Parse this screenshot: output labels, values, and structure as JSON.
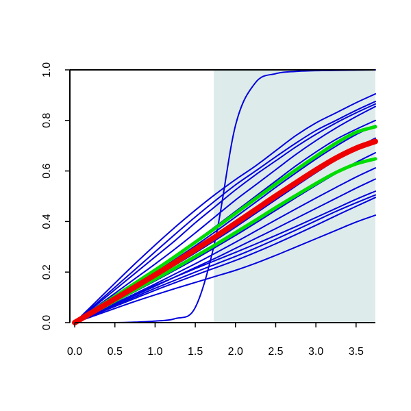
{
  "chart_data": {
    "type": "line",
    "title": "",
    "xlabel": "",
    "ylabel": "",
    "xlim": [
      -0.06,
      3.74
    ],
    "ylim": [
      0.0,
      1.0
    ],
    "x_ticks": [
      {
        "value": 0.0,
        "label": "0.0"
      },
      {
        "value": 0.5,
        "label": "0.5"
      },
      {
        "value": 1.0,
        "label": "1.0"
      },
      {
        "value": 1.5,
        "label": "1.5"
      },
      {
        "value": 2.0,
        "label": "2.0"
      },
      {
        "value": 2.5,
        "label": "2.5"
      },
      {
        "value": 3.0,
        "label": "3.0"
      },
      {
        "value": 3.5,
        "label": "3.5"
      }
    ],
    "y_ticks": [
      {
        "value": 0.0,
        "label": "0.0"
      },
      {
        "value": 0.2,
        "label": "0.2"
      },
      {
        "value": 0.4,
        "label": "0.4"
      },
      {
        "value": 0.6,
        "label": "0.6"
      },
      {
        "value": 0.8,
        "label": "0.8"
      },
      {
        "value": 1.0,
        "label": "1.0"
      }
    ],
    "grid": false,
    "legend": "none",
    "shaded_region": {
      "x_start": 1.73,
      "x_end": 3.74,
      "color": "#deebeb"
    },
    "x": [
      0.0,
      0.25,
      0.5,
      0.75,
      1.0,
      1.25,
      1.5,
      1.75,
      2.0,
      2.25,
      2.5,
      2.75,
      3.0,
      3.25,
      3.5,
      3.74
    ],
    "series": [
      {
        "color": "#0000dd",
        "width": 2,
        "values": [
          0.0,
          0.0,
          0.0,
          0.002,
          0.006,
          0.016,
          0.06,
          0.33,
          0.78,
          0.95,
          0.985,
          0.994,
          0.997,
          0.998,
          0.999,
          1.0
        ]
      },
      {
        "color": "#0000dd",
        "width": 2,
        "values": [
          0.0,
          0.078,
          0.156,
          0.233,
          0.307,
          0.378,
          0.445,
          0.508,
          0.566,
          0.62,
          0.68,
          0.74,
          0.79,
          0.83,
          0.87,
          0.905
        ]
      },
      {
        "color": "#0000dd",
        "width": 2,
        "values": [
          0.0,
          0.07,
          0.14,
          0.21,
          0.28,
          0.35,
          0.418,
          0.483,
          0.545,
          0.6,
          0.656,
          0.71,
          0.76,
          0.8,
          0.84,
          0.875
        ]
      },
      {
        "color": "#0000dd",
        "width": 2,
        "values": [
          0.0,
          0.065,
          0.13,
          0.195,
          0.26,
          0.325,
          0.395,
          0.46,
          0.525,
          0.585,
          0.64,
          0.695,
          0.745,
          0.79,
          0.83,
          0.865
        ]
      },
      {
        "color": "#0000dd",
        "width": 2,
        "values": [
          0.0,
          0.058,
          0.116,
          0.174,
          0.232,
          0.292,
          0.355,
          0.42,
          0.485,
          0.545,
          0.605,
          0.665,
          0.72,
          0.77,
          0.815,
          0.855
        ]
      },
      {
        "color": "#0000dd",
        "width": 2,
        "values": [
          0.0,
          0.052,
          0.104,
          0.156,
          0.21,
          0.265,
          0.322,
          0.38,
          0.44,
          0.5,
          0.56,
          0.62,
          0.675,
          0.725,
          0.765,
          0.8
        ]
      },
      {
        "color": "#0000dd",
        "width": 2,
        "values": [
          0.0,
          0.049,
          0.098,
          0.147,
          0.198,
          0.25,
          0.304,
          0.36,
          0.418,
          0.476,
          0.535,
          0.592,
          0.647,
          0.698,
          0.744,
          0.78
        ]
      },
      {
        "color": "#0000dd",
        "width": 2,
        "values": [
          0.0,
          0.045,
          0.09,
          0.135,
          0.181,
          0.228,
          0.276,
          0.326,
          0.378,
          0.432,
          0.486,
          0.54,
          0.593,
          0.643,
          0.69,
          0.73
        ]
      },
      {
        "color": "#0000dd",
        "width": 2,
        "values": [
          0.0,
          0.041,
          0.082,
          0.123,
          0.165,
          0.208,
          0.252,
          0.298,
          0.345,
          0.394,
          0.444,
          0.494,
          0.543,
          0.59,
          0.634,
          0.672
        ]
      },
      {
        "color": "#0000dd",
        "width": 2,
        "values": [
          0.0,
          0.038,
          0.076,
          0.114,
          0.153,
          0.193,
          0.233,
          0.275,
          0.318,
          0.362,
          0.406,
          0.45,
          0.493,
          0.535,
          0.576,
          0.612
        ]
      },
      {
        "color": "#0000dd",
        "width": 2,
        "values": [
          0.0,
          0.036,
          0.072,
          0.108,
          0.144,
          0.181,
          0.218,
          0.255,
          0.294,
          0.333,
          0.372,
          0.412,
          0.452,
          0.492,
          0.532,
          0.568
        ]
      },
      {
        "color": "#0000dd",
        "width": 2,
        "values": [
          0.0,
          0.038,
          0.076,
          0.112,
          0.147,
          0.181,
          0.214,
          0.246,
          0.278,
          0.311,
          0.345,
          0.38,
          0.416,
          0.452,
          0.488,
          0.52
        ]
      },
      {
        "color": "#0000dd",
        "width": 2,
        "values": [
          0.0,
          0.034,
          0.068,
          0.102,
          0.136,
          0.168,
          0.2,
          0.231,
          0.262,
          0.295,
          0.33,
          0.366,
          0.403,
          0.44,
          0.474,
          0.505
        ]
      },
      {
        "color": "#0000dd",
        "width": 2,
        "values": [
          0.0,
          0.032,
          0.064,
          0.096,
          0.128,
          0.158,
          0.188,
          0.217,
          0.246,
          0.278,
          0.312,
          0.348,
          0.385,
          0.423,
          0.46,
          0.495
        ]
      },
      {
        "color": "#0000dd",
        "width": 2,
        "values": [
          0.0,
          0.028,
          0.056,
          0.084,
          0.11,
          0.135,
          0.159,
          0.183,
          0.207,
          0.235,
          0.266,
          0.299,
          0.332,
          0.365,
          0.398,
          0.425
        ]
      },
      {
        "color": "#00dd00",
        "width": 5,
        "values": [
          0.0,
          0.052,
          0.104,
          0.156,
          0.208,
          0.262,
          0.318,
          0.374,
          0.432,
          0.49,
          0.548,
          0.604,
          0.658,
          0.71,
          0.753,
          0.775
        ]
      },
      {
        "color": "#00dd00",
        "width": 5,
        "values": [
          0.0,
          0.043,
          0.086,
          0.129,
          0.172,
          0.216,
          0.262,
          0.308,
          0.356,
          0.405,
          0.455,
          0.503,
          0.55,
          0.594,
          0.628,
          0.648
        ]
      },
      {
        "color": "#ee0000",
        "width": 8,
        "values": [
          0.0,
          0.047,
          0.094,
          0.141,
          0.189,
          0.238,
          0.289,
          0.34,
          0.393,
          0.447,
          0.501,
          0.553,
          0.604,
          0.651,
          0.69,
          0.717
        ]
      }
    ]
  }
}
